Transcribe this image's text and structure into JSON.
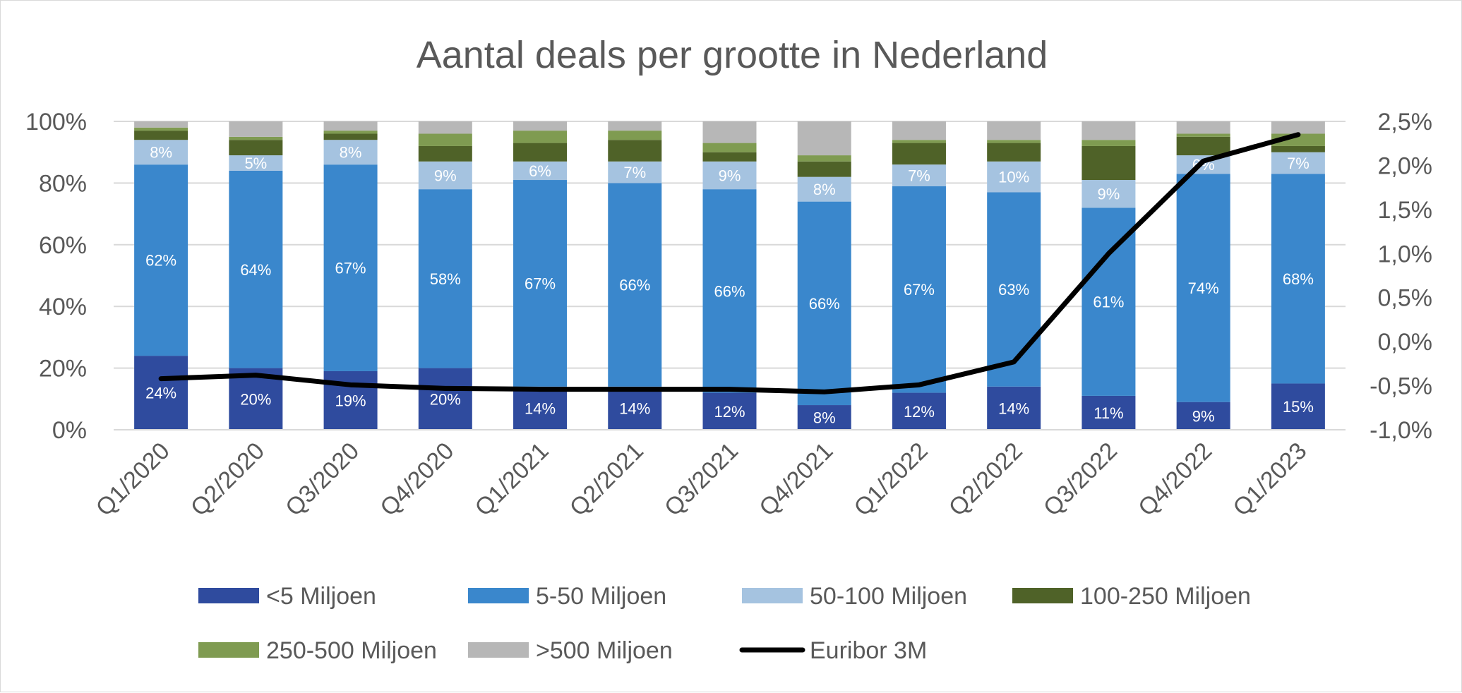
{
  "chart_data": {
    "type": "bar",
    "stacked": true,
    "title": "Aantal deals per grootte in Nederland",
    "categories": [
      "Q1/2020",
      "Q2/2020",
      "Q3/2020",
      "Q4/2020",
      "Q1/2021",
      "Q2/2021",
      "Q3/2021",
      "Q4/2021",
      "Q1/2022",
      "Q2/2022",
      "Q3/2022",
      "Q4/2022",
      "Q1/2023"
    ],
    "y_left": {
      "range": [
        0,
        100
      ],
      "ticks": [
        "0%",
        "20%",
        "40%",
        "60%",
        "80%",
        "100%"
      ]
    },
    "y_right": {
      "range": [
        -1.0,
        2.5
      ],
      "ticks": [
        "-1,0%",
        "-0,5%",
        "0,0%",
        "0,5%",
        "1,0%",
        "1,5%",
        "2,0%",
        "2,5%"
      ]
    },
    "grid": true,
    "legend_position": "bottom",
    "series": [
      {
        "name": "<5 Miljoen",
        "color": "#2f4b9e",
        "values": [
          24,
          20,
          19,
          20,
          14,
          14,
          12,
          8,
          12,
          14,
          11,
          9,
          15
        ],
        "labels": [
          "24%",
          "20%",
          "19%",
          "20%",
          "14%",
          "14%",
          "12%",
          "8%",
          "12%",
          "14%",
          "11%",
          "9%",
          "15%"
        ]
      },
      {
        "name": "5-50 Miljoen",
        "color": "#3a87cc",
        "values": [
          62,
          64,
          67,
          58,
          67,
          66,
          66,
          66,
          67,
          63,
          61,
          74,
          68
        ],
        "labels": [
          "62%",
          "64%",
          "67%",
          "58%",
          "67%",
          "66%",
          "66%",
          "66%",
          "67%",
          "63%",
          "61%",
          "74%",
          "68%"
        ]
      },
      {
        "name": "50-100 Miljoen",
        "color": "#a5c3e0",
        "values": [
          8,
          5,
          8,
          9,
          6,
          7,
          9,
          8,
          7,
          10,
          9,
          6,
          7
        ],
        "labels": [
          "8%",
          "5%",
          "8%",
          "9%",
          "6%",
          "7%",
          "9%",
          "8%",
          "7%",
          "10%",
          "9%",
          "6%",
          "7%"
        ]
      },
      {
        "name": "100-250 Miljoen",
        "color": "#4f6228",
        "values": [
          3,
          5,
          2,
          5,
          6,
          7,
          3,
          5,
          7,
          6,
          11,
          6,
          2
        ]
      },
      {
        "name": "250-500 Miljoen",
        "color": "#7f9b51",
        "values": [
          1,
          1,
          1,
          4,
          4,
          3,
          3,
          2,
          1,
          1,
          2,
          1,
          4
        ]
      },
      {
        "name": ">500 Miljoen",
        "color": "#b7b7b7",
        "values": [
          2,
          5,
          3,
          4,
          3,
          3,
          7,
          11,
          6,
          6,
          6,
          4,
          4
        ]
      }
    ],
    "line": {
      "name": "Euribor 3M",
      "color": "#000000",
      "axis": "right",
      "values": [
        -0.42,
        -0.38,
        -0.49,
        -0.53,
        -0.54,
        -0.54,
        -0.54,
        -0.57,
        -0.49,
        -0.23,
        1.0,
        2.05,
        2.35
      ]
    }
  }
}
